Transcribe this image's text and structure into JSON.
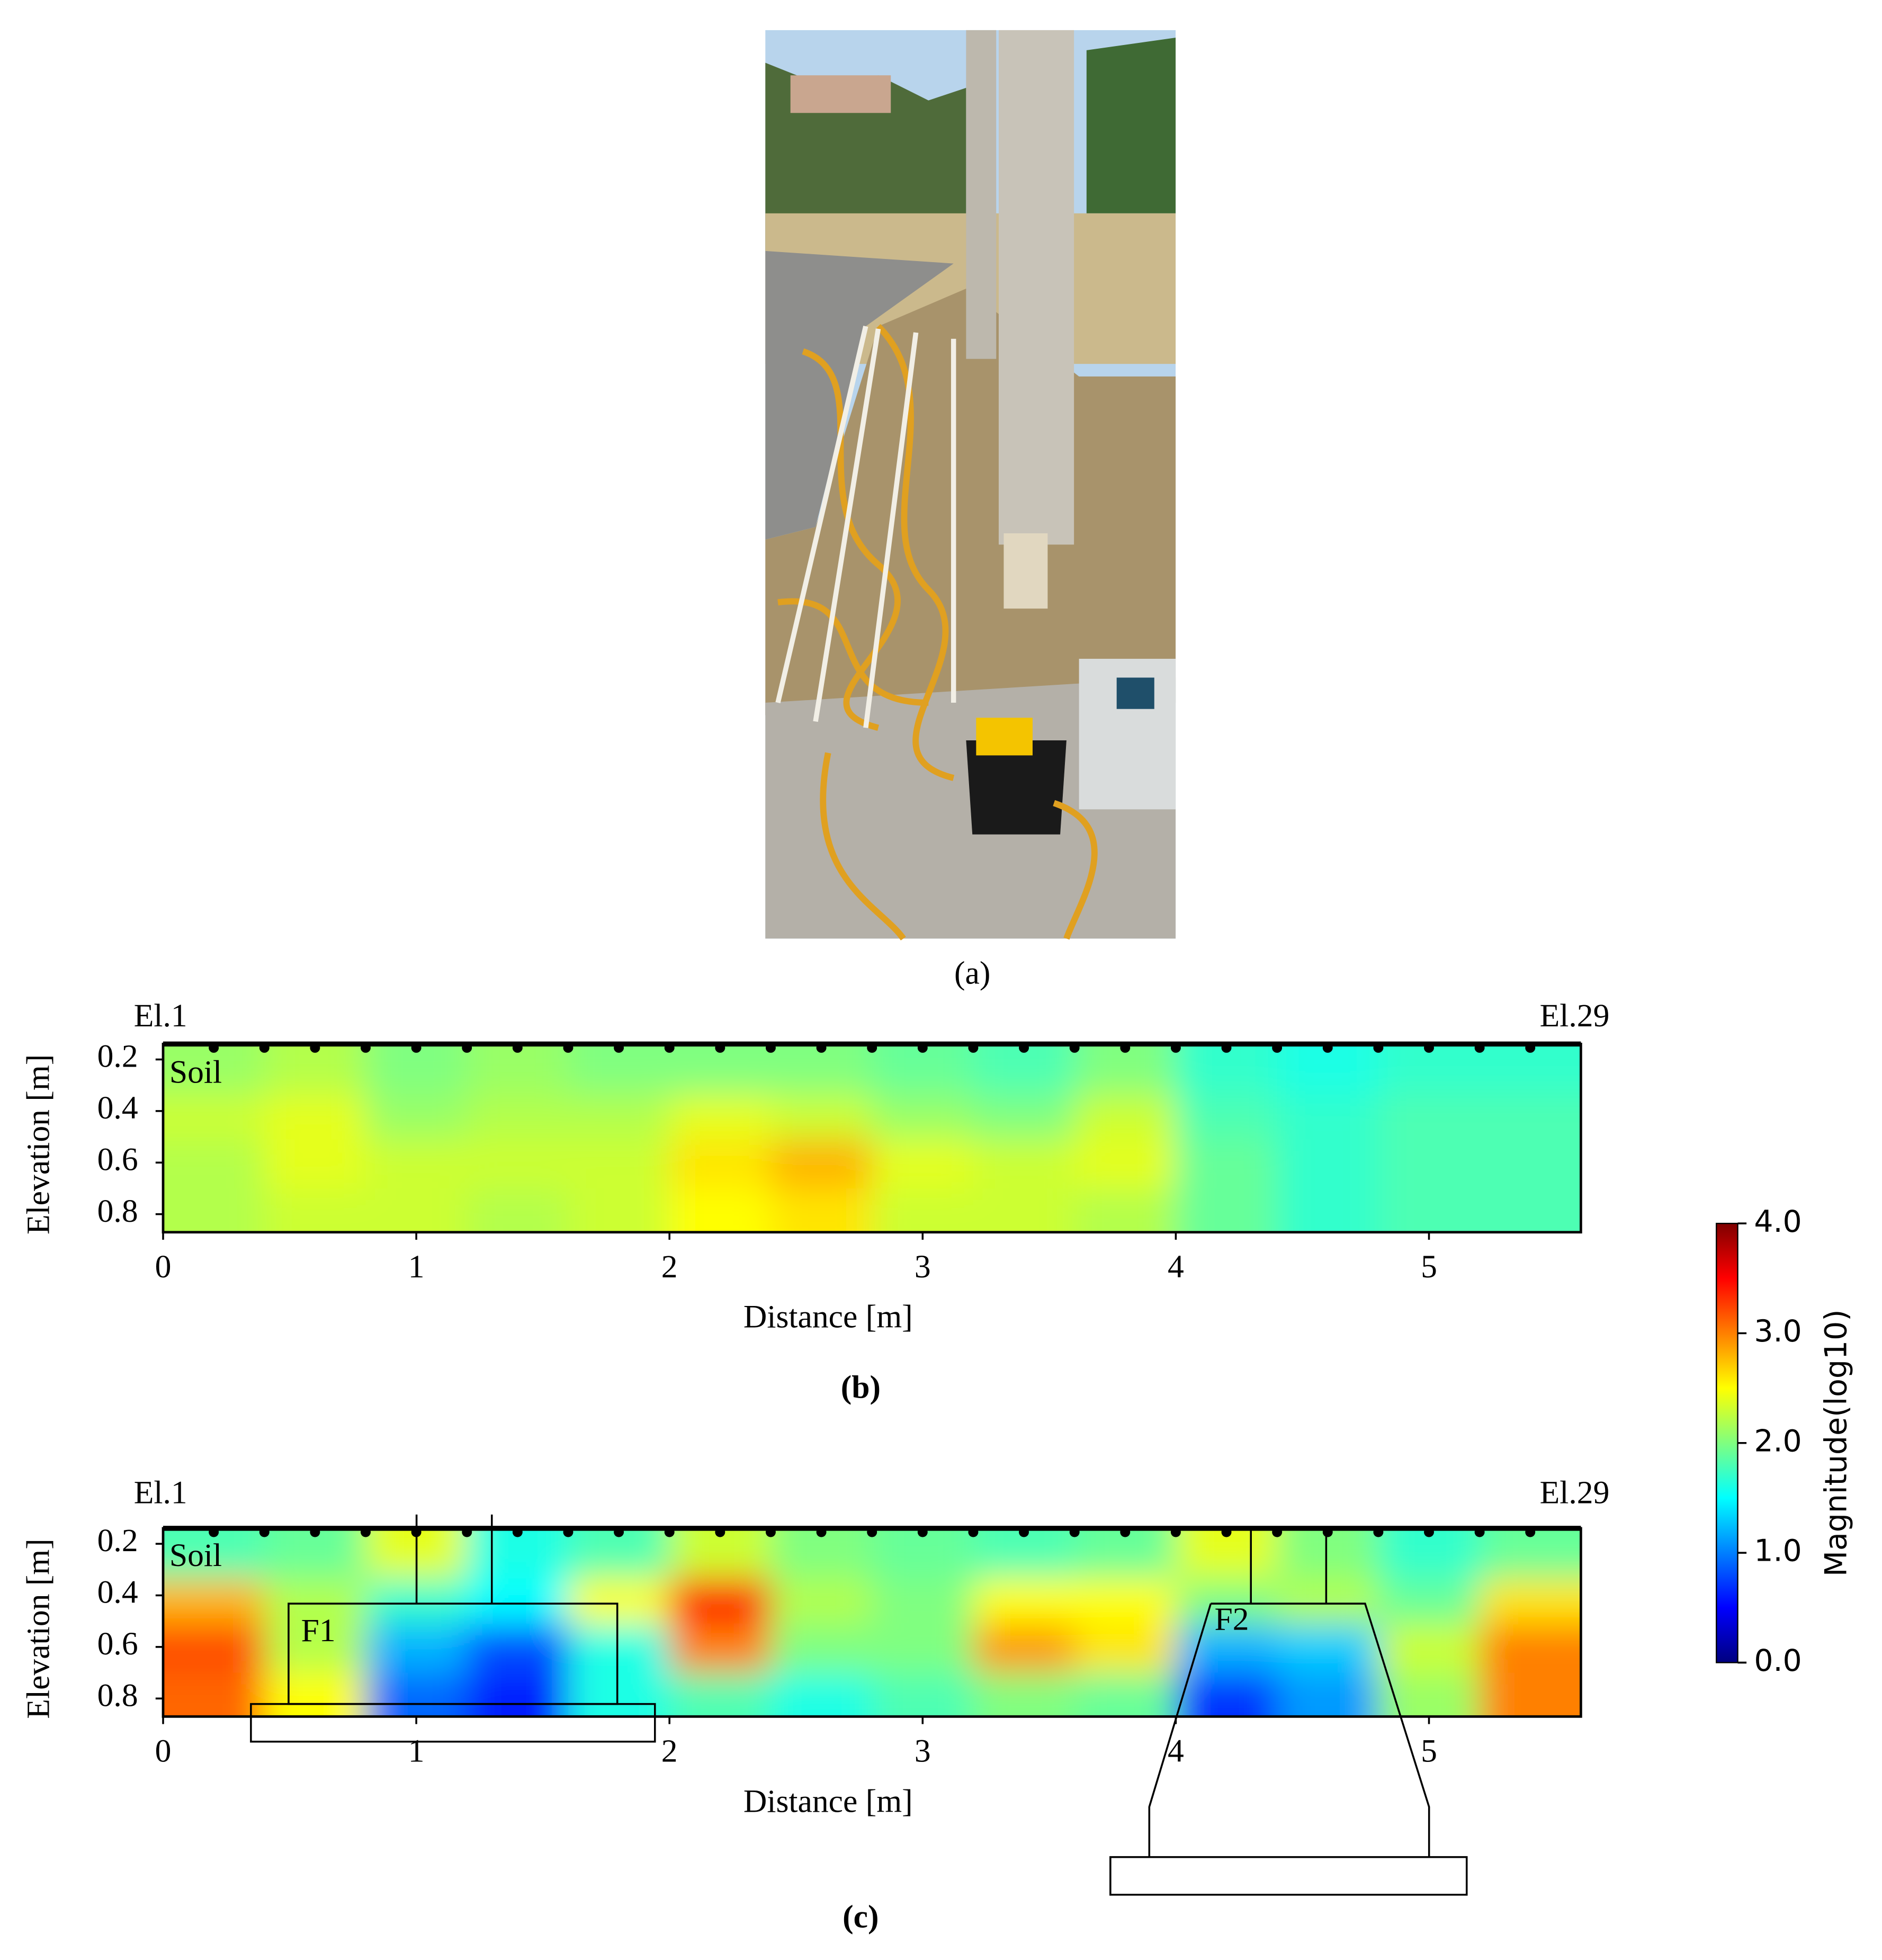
{
  "photo": {
    "caption": "(a)"
  },
  "chart_data": [
    {
      "type": "heatmap",
      "title": "(b)",
      "x_label": "Distance [m]",
      "y_label": "Elevation [m]",
      "electrode_labels": [
        "El.1",
        "El.29"
      ],
      "annotations": [
        "Soil"
      ],
      "xlim": [
        0,
        5.6
      ],
      "ylim": [
        0.14,
        0.87
      ],
      "xticks": [
        0,
        1,
        2,
        3,
        4,
        5
      ],
      "yticks": [
        0.2,
        0.4,
        0.6,
        0.8
      ],
      "x": [
        0.2,
        0.6,
        1.0,
        1.4,
        1.8,
        2.2,
        2.6,
        3.0,
        3.4,
        3.8,
        4.2,
        4.6,
        5.0,
        5.4
      ],
      "y": [
        0.25,
        0.42,
        0.6,
        0.8
      ],
      "z": [
        [
          2.1,
          2.2,
          2.0,
          2.1,
          2.0,
          2.0,
          2.0,
          1.9,
          1.8,
          2.0,
          1.7,
          1.6,
          1.7,
          1.7
        ],
        [
          2.3,
          2.4,
          2.1,
          2.2,
          2.2,
          2.4,
          2.3,
          2.1,
          2.0,
          2.3,
          1.8,
          1.7,
          1.8,
          1.8
        ],
        [
          2.2,
          2.4,
          2.3,
          2.3,
          2.3,
          2.6,
          2.8,
          2.4,
          2.3,
          2.4,
          1.9,
          1.7,
          1.8,
          1.8
        ],
        [
          2.2,
          2.3,
          2.3,
          2.2,
          2.3,
          2.5,
          2.6,
          2.3,
          2.3,
          2.2,
          1.9,
          1.7,
          1.8,
          1.8
        ]
      ]
    },
    {
      "type": "heatmap",
      "title": "(c)",
      "x_label": "Distance [m]",
      "y_label": "Elevation [m]",
      "electrode_labels": [
        "El.1",
        "El.29"
      ],
      "annotations": [
        "Soil",
        "F1",
        "F2"
      ],
      "xlim": [
        0,
        5.6
      ],
      "ylim": [
        0.14,
        0.87
      ],
      "xticks": [
        0,
        1,
        2,
        3,
        4,
        5
      ],
      "yticks": [
        0.2,
        0.4,
        0.6,
        0.8
      ],
      "x": [
        0.2,
        0.6,
        1.0,
        1.4,
        1.8,
        2.2,
        2.6,
        3.0,
        3.4,
        3.8,
        4.2,
        4.6,
        5.0,
        5.4
      ],
      "y": [
        0.25,
        0.42,
        0.6,
        0.8
      ],
      "z": [
        [
          1.8,
          1.9,
          2.4,
          1.6,
          1.8,
          2.3,
          2.0,
          1.9,
          1.8,
          1.9,
          2.4,
          2.0,
          1.7,
          1.9
        ],
        [
          2.8,
          2.2,
          1.7,
          1.5,
          2.5,
          3.5,
          2.2,
          2.0,
          2.5,
          2.5,
          2.0,
          2.2,
          1.9,
          2.6
        ],
        [
          3.2,
          2.2,
          1.2,
          0.8,
          1.6,
          3.0,
          2.0,
          2.0,
          2.9,
          2.6,
          1.2,
          1.3,
          2.3,
          3.0
        ],
        [
          3.1,
          2.5,
          0.9,
          0.6,
          1.6,
          1.8,
          1.6,
          1.8,
          2.0,
          1.9,
          0.7,
          1.1,
          2.1,
          3.0
        ]
      ]
    }
  ],
  "colorbar": {
    "label": "Magnitude(log10)",
    "lim": [
      0,
      4
    ],
    "ticks": [
      {
        "value": 4,
        "label": "4.0"
      },
      {
        "value": 3,
        "label": "3.0"
      },
      {
        "value": 2,
        "label": "2.0"
      },
      {
        "value": 1,
        "label": "1.0"
      },
      {
        "value": 0,
        "label": "0.0"
      }
    ]
  }
}
